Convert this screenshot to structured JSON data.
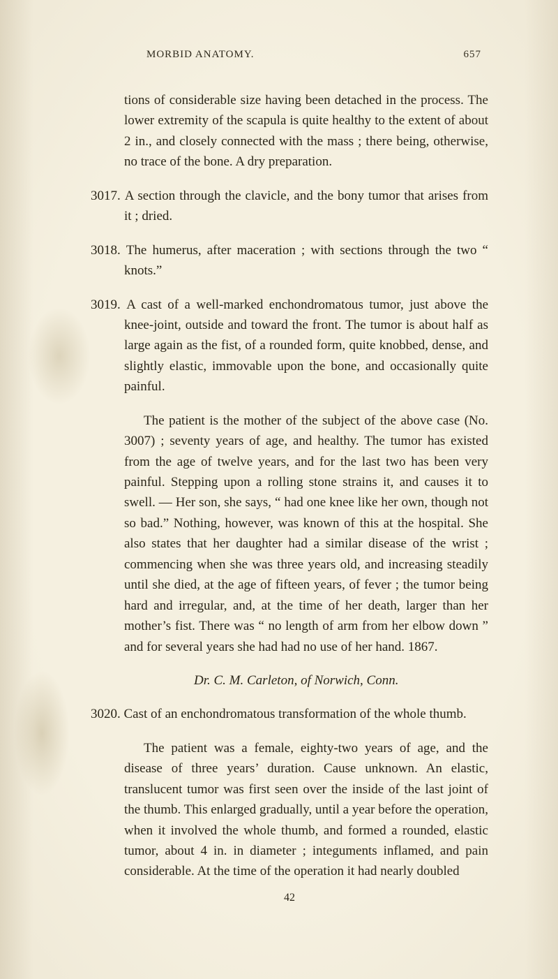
{
  "colors": {
    "paper": "#f5f0e0",
    "ink": "#2a2518",
    "stain": "#96824f"
  },
  "typography": {
    "body_font": "Georgia, 'Times New Roman', serif",
    "body_size_pt": 14,
    "header_size_pt": 11,
    "line_height": 1.55
  },
  "header": {
    "running_title": "MORBID ANATOMY.",
    "page_number": "657"
  },
  "entries": [
    {
      "kind": "continuation",
      "text": "tions of considerable size having been detached in the process. The lower extremity of the scapula is quite healthy to the extent of about 2 in., and closely connected with the mass ; there being, otherwise, no trace of the bone. A dry preparation."
    },
    {
      "kind": "numbered",
      "number": "3017.",
      "text": "A section through the clavicle, and the bony tumor that arises from it ; dried."
    },
    {
      "kind": "numbered",
      "number": "3018.",
      "text": "The humerus, after maceration ; with sections through the two “ knots.”"
    },
    {
      "kind": "numbered",
      "number": "3019.",
      "text": "A cast of a well-marked enchondromatous tumor, just above the knee-joint, outside and toward the front. The tumor is about half as large again as the fist, of a rounded form, quite knobbed, dense, and slightly elastic, immovable upon the bone, and occasionally quite painful."
    },
    {
      "kind": "paragraph",
      "text": "The patient is the mother of the subject of the above case (No. 3007) ; seventy years of age, and healthy. The tumor has existed from the age of twelve years, and for the last two has been very painful. Stepping upon a rolling stone strains it, and causes it to swell. — Her son, she says, “ had one knee like her own, though not so bad.” Nothing, however, was known of this at the hospital. She also states that her daughter had a similar disease of the wrist ; commencing when she was three years old, and increasing steadily until she died, at the age of fifteen years, of fever ; the tumor being hard and irregular, and, at the time of her death, larger than her mother’s fist. There was “ no length of arm from her elbow down ” and for several years she had had no use of her hand. 1867."
    },
    {
      "kind": "attribution",
      "text": "Dr. C. M. Carleton, of Norwich, Conn."
    },
    {
      "kind": "numbered",
      "number": "3020.",
      "text": "Cast of an enchondromatous transformation of the whole thumb."
    },
    {
      "kind": "paragraph",
      "text": "The patient was a female, eighty-two years of age, and the disease of three years’ duration. Cause unknown. An elastic, translucent tumor was first seen over the inside of the last joint of the thumb. This enlarged gradually, until a year before the operation, when it involved the whole thumb, and formed a rounded, elastic tumor, about 4 in. in diameter ; integuments inflamed, and pain considerable. At the time of the operation it had nearly doubled"
    }
  ],
  "footer": {
    "signature_number": "42"
  }
}
